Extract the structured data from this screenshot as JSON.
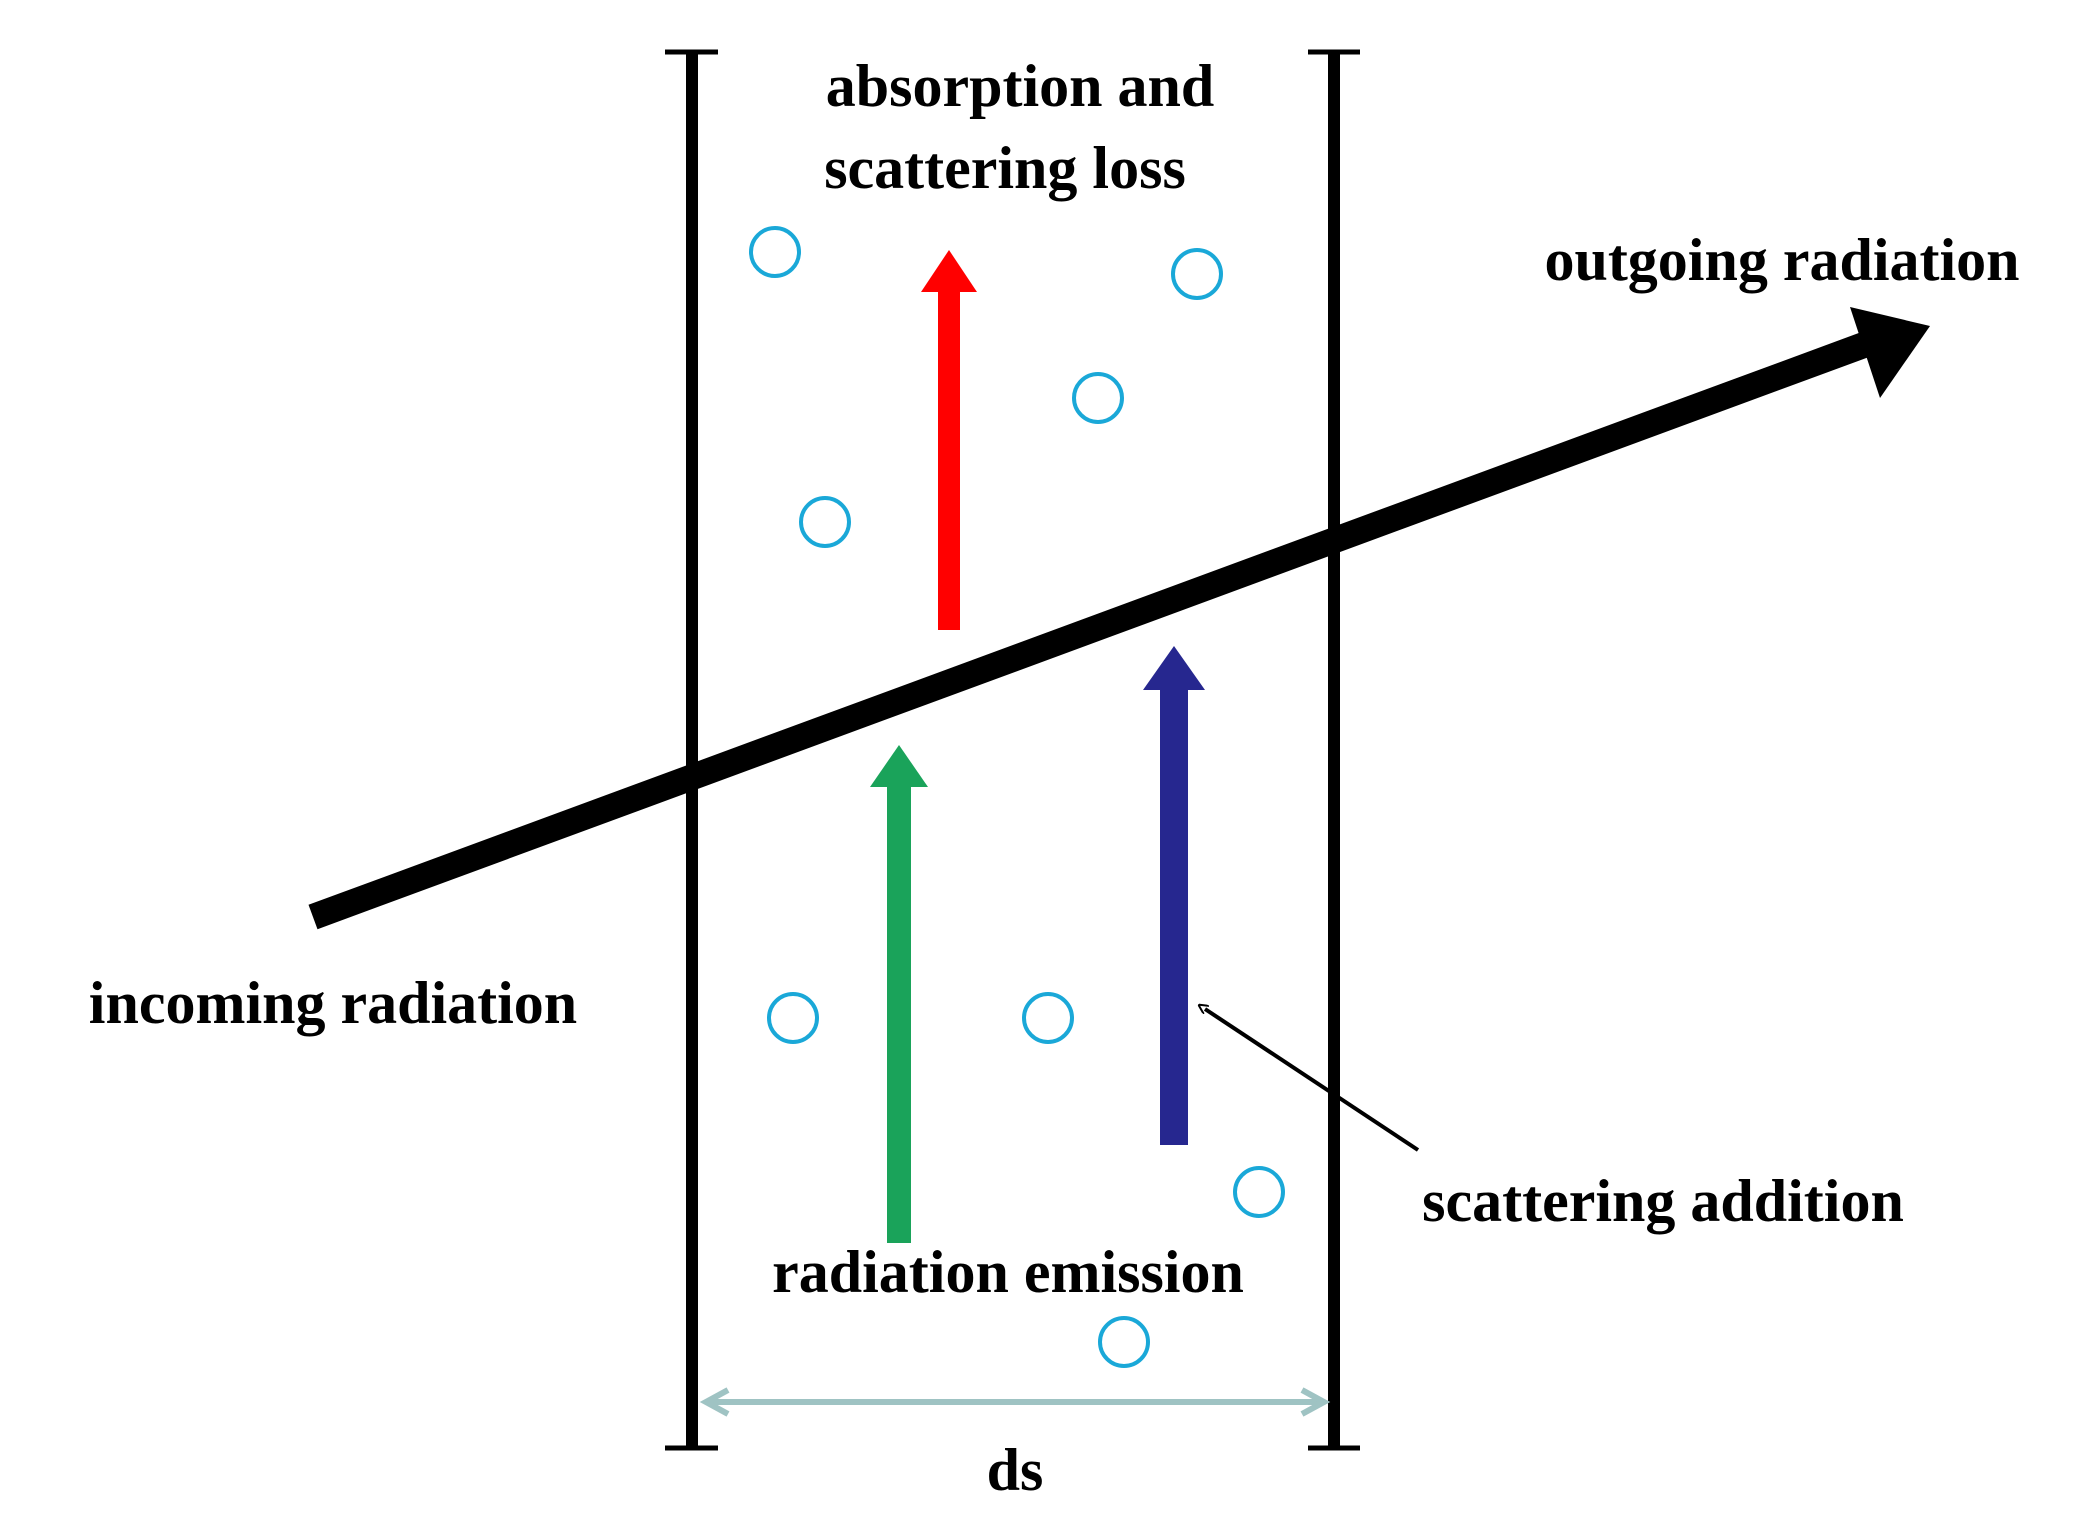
{
  "labels": {
    "absorption_line1": "absorption and",
    "absorption_line2": "scattering loss",
    "outgoing": "outgoing radiation",
    "incoming": "incoming radiation",
    "scattering_addition": "scattering addition",
    "emission": "radiation emission",
    "thickness": "ds"
  },
  "colors": {
    "beam": "#000000",
    "slab_walls": "#000000",
    "absorption_arrow": "#ff0000",
    "emission_arrow": "#1aa35a",
    "scattering_arrow": "#26278f",
    "particles": "#1aa8d8",
    "dimension_arrow": "#9fc3c3"
  }
}
